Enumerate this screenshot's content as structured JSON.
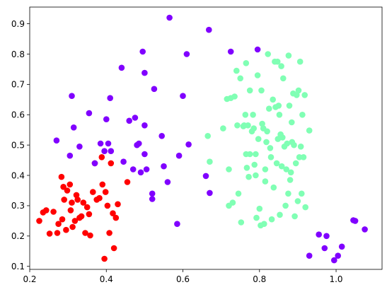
{
  "chart_data": {
    "type": "scatter",
    "title": "",
    "xlabel": "",
    "ylabel": "",
    "xlim": [
      0.2,
      1.12
    ],
    "ylim": [
      0.09,
      0.955
    ],
    "grid": false,
    "xticks": [
      0.2,
      0.4,
      0.6,
      0.8,
      1.0
    ],
    "yticks": [
      0.1,
      0.2,
      0.3,
      0.4,
      0.5,
      0.6,
      0.7,
      0.8,
      0.9
    ],
    "xtick_labels": [
      "0.2",
      "0.4",
      "0.6",
      "0.8",
      "1.0"
    ],
    "ytick_labels": [
      "0.1",
      "0.2",
      "0.3",
      "0.4",
      "0.5",
      "0.6",
      "0.7",
      "0.8",
      "0.9"
    ],
    "series": [
      {
        "color": "#ff0000",
        "points": [
          [
            0.225,
            0.25
          ],
          [
            0.235,
            0.278
          ],
          [
            0.243,
            0.285
          ],
          [
            0.252,
            0.208
          ],
          [
            0.262,
            0.28
          ],
          [
            0.272,
            0.21
          ],
          [
            0.275,
            0.24
          ],
          [
            0.283,
            0.395
          ],
          [
            0.288,
            0.362
          ],
          [
            0.285,
            0.255
          ],
          [
            0.29,
            0.32
          ],
          [
            0.295,
            0.22
          ],
          [
            0.298,
            0.35
          ],
          [
            0.305,
            0.37
          ],
          [
            0.307,
            0.285
          ],
          [
            0.31,
            0.31
          ],
          [
            0.312,
            0.23
          ],
          [
            0.318,
            0.25
          ],
          [
            0.322,
            0.335
          ],
          [
            0.325,
            0.32
          ],
          [
            0.33,
            0.26
          ],
          [
            0.335,
            0.265
          ],
          [
            0.34,
            0.31
          ],
          [
            0.345,
            0.21
          ],
          [
            0.35,
            0.295
          ],
          [
            0.355,
            0.272
          ],
          [
            0.358,
            0.202
          ],
          [
            0.365,
            0.345
          ],
          [
            0.37,
            0.44
          ],
          [
            0.375,
            0.32
          ],
          [
            0.382,
            0.325
          ],
          [
            0.388,
            0.46
          ],
          [
            0.39,
            0.37
          ],
          [
            0.395,
            0.125
          ],
          [
            0.398,
            0.345
          ],
          [
            0.403,
            0.3
          ],
          [
            0.408,
            0.21
          ],
          [
            0.412,
            0.44
          ],
          [
            0.417,
            0.275
          ],
          [
            0.42,
            0.16
          ],
          [
            0.425,
            0.26
          ],
          [
            0.43,
            0.305
          ],
          [
            0.455,
            0.378
          ]
        ]
      },
      {
        "color": "#8000ff",
        "points": [
          [
            0.27,
            0.515
          ],
          [
            0.305,
            0.465
          ],
          [
            0.31,
            0.662
          ],
          [
            0.315,
            0.558
          ],
          [
            0.33,
            0.495
          ],
          [
            0.355,
            0.605
          ],
          [
            0.37,
            0.44
          ],
          [
            0.385,
            0.505
          ],
          [
            0.395,
            0.48
          ],
          [
            0.4,
            0.585
          ],
          [
            0.405,
            0.505
          ],
          [
            0.41,
            0.655
          ],
          [
            0.412,
            0.48
          ],
          [
            0.44,
            0.755
          ],
          [
            0.445,
            0.445
          ],
          [
            0.46,
            0.58
          ],
          [
            0.47,
            0.42
          ],
          [
            0.475,
            0.59
          ],
          [
            0.48,
            0.5
          ],
          [
            0.485,
            0.505
          ],
          [
            0.49,
            0.41
          ],
          [
            0.495,
            0.808
          ],
          [
            0.5,
            0.738
          ],
          [
            0.5,
            0.565
          ],
          [
            0.5,
            0.47
          ],
          [
            0.505,
            0.42
          ],
          [
            0.52,
            0.34
          ],
          [
            0.52,
            0.322
          ],
          [
            0.525,
            0.685
          ],
          [
            0.545,
            0.53
          ],
          [
            0.55,
            0.43
          ],
          [
            0.56,
            0.378
          ],
          [
            0.565,
            0.92
          ],
          [
            0.585,
            0.24
          ],
          [
            0.59,
            0.465
          ],
          [
            0.6,
            0.662
          ],
          [
            0.61,
            0.8
          ],
          [
            0.615,
            0.502
          ],
          [
            0.66,
            0.398
          ],
          [
            0.668,
            0.88
          ],
          [
            0.67,
            0.342
          ],
          [
            0.725,
            0.808
          ],
          [
            0.795,
            0.815
          ],
          [
            0.93,
            0.135
          ],
          [
            0.955,
            0.205
          ],
          [
            0.97,
            0.16
          ],
          [
            0.975,
            0.2
          ],
          [
            0.995,
            0.12
          ],
          [
            1.005,
            0.135
          ],
          [
            1.015,
            0.165
          ],
          [
            1.045,
            0.252
          ],
          [
            1.05,
            0.25
          ],
          [
            1.075,
            0.222
          ]
        ]
      },
      {
        "color": "#80ffb4",
        "points": [
          [
            0.665,
            0.53
          ],
          [
            0.67,
            0.445
          ],
          [
            0.705,
            0.555
          ],
          [
            0.715,
            0.652
          ],
          [
            0.72,
            0.3
          ],
          [
            0.72,
            0.42
          ],
          [
            0.725,
            0.655
          ],
          [
            0.73,
            0.31
          ],
          [
            0.735,
            0.66
          ],
          [
            0.74,
            0.745
          ],
          [
            0.742,
            0.565
          ],
          [
            0.745,
            0.34
          ],
          [
            0.75,
            0.72
          ],
          [
            0.752,
            0.245
          ],
          [
            0.758,
            0.562
          ],
          [
            0.76,
            0.565
          ],
          [
            0.763,
            0.6
          ],
          [
            0.765,
            0.77
          ],
          [
            0.765,
            0.47
          ],
          [
            0.767,
            0.425
          ],
          [
            0.77,
            0.565
          ],
          [
            0.772,
            0.395
          ],
          [
            0.775,
            0.68
          ],
          [
            0.775,
            0.47
          ],
          [
            0.78,
            0.545
          ],
          [
            0.783,
            0.6
          ],
          [
            0.785,
            0.555
          ],
          [
            0.787,
            0.435
          ],
          [
            0.79,
            0.47
          ],
          [
            0.79,
            0.4
          ],
          [
            0.792,
            0.26
          ],
          [
            0.795,
            0.73
          ],
          [
            0.797,
            0.52
          ],
          [
            0.8,
            0.29
          ],
          [
            0.803,
            0.235
          ],
          [
            0.805,
            0.68
          ],
          [
            0.807,
            0.57
          ],
          [
            0.81,
            0.555
          ],
          [
            0.812,
            0.24
          ],
          [
            0.815,
            0.42
          ],
          [
            0.815,
            0.38
          ],
          [
            0.818,
            0.51
          ],
          [
            0.82,
            0.545
          ],
          [
            0.822,
            0.8
          ],
          [
            0.825,
            0.62
          ],
          [
            0.828,
            0.49
          ],
          [
            0.83,
            0.46
          ],
          [
            0.832,
            0.255
          ],
          [
            0.835,
            0.65
          ],
          [
            0.837,
            0.36
          ],
          [
            0.84,
            0.775
          ],
          [
            0.842,
            0.625
          ],
          [
            0.845,
            0.44
          ],
          [
            0.847,
            0.775
          ],
          [
            0.848,
            0.52
          ],
          [
            0.85,
            0.63
          ],
          [
            0.852,
            0.6
          ],
          [
            0.853,
            0.27
          ],
          [
            0.855,
            0.535
          ],
          [
            0.857,
            0.76
          ],
          [
            0.858,
            0.43
          ],
          [
            0.86,
            0.525
          ],
          [
            0.862,
            0.72
          ],
          [
            0.865,
            0.495
          ],
          [
            0.868,
            0.3
          ],
          [
            0.87,
            0.42
          ],
          [
            0.872,
            0.505
          ],
          [
            0.875,
            0.34
          ],
          [
            0.876,
            0.795
          ],
          [
            0.878,
            0.63
          ],
          [
            0.88,
            0.385
          ],
          [
            0.882,
            0.41
          ],
          [
            0.884,
            0.575
          ],
          [
            0.885,
            0.51
          ],
          [
            0.888,
            0.67
          ],
          [
            0.89,
            0.5
          ],
          [
            0.892,
            0.265
          ],
          [
            0.895,
            0.44
          ],
          [
            0.897,
            0.665
          ],
          [
            0.9,
            0.315
          ],
          [
            0.902,
            0.68
          ],
          [
            0.904,
            0.46
          ],
          [
            0.906,
            0.775
          ],
          [
            0.908,
            0.495
          ],
          [
            0.91,
            0.34
          ],
          [
            0.912,
            0.6
          ],
          [
            0.915,
            0.46
          ],
          [
            0.918,
            0.665
          ],
          [
            0.92,
            0.295
          ],
          [
            0.93,
            0.548
          ]
        ]
      }
    ]
  }
}
